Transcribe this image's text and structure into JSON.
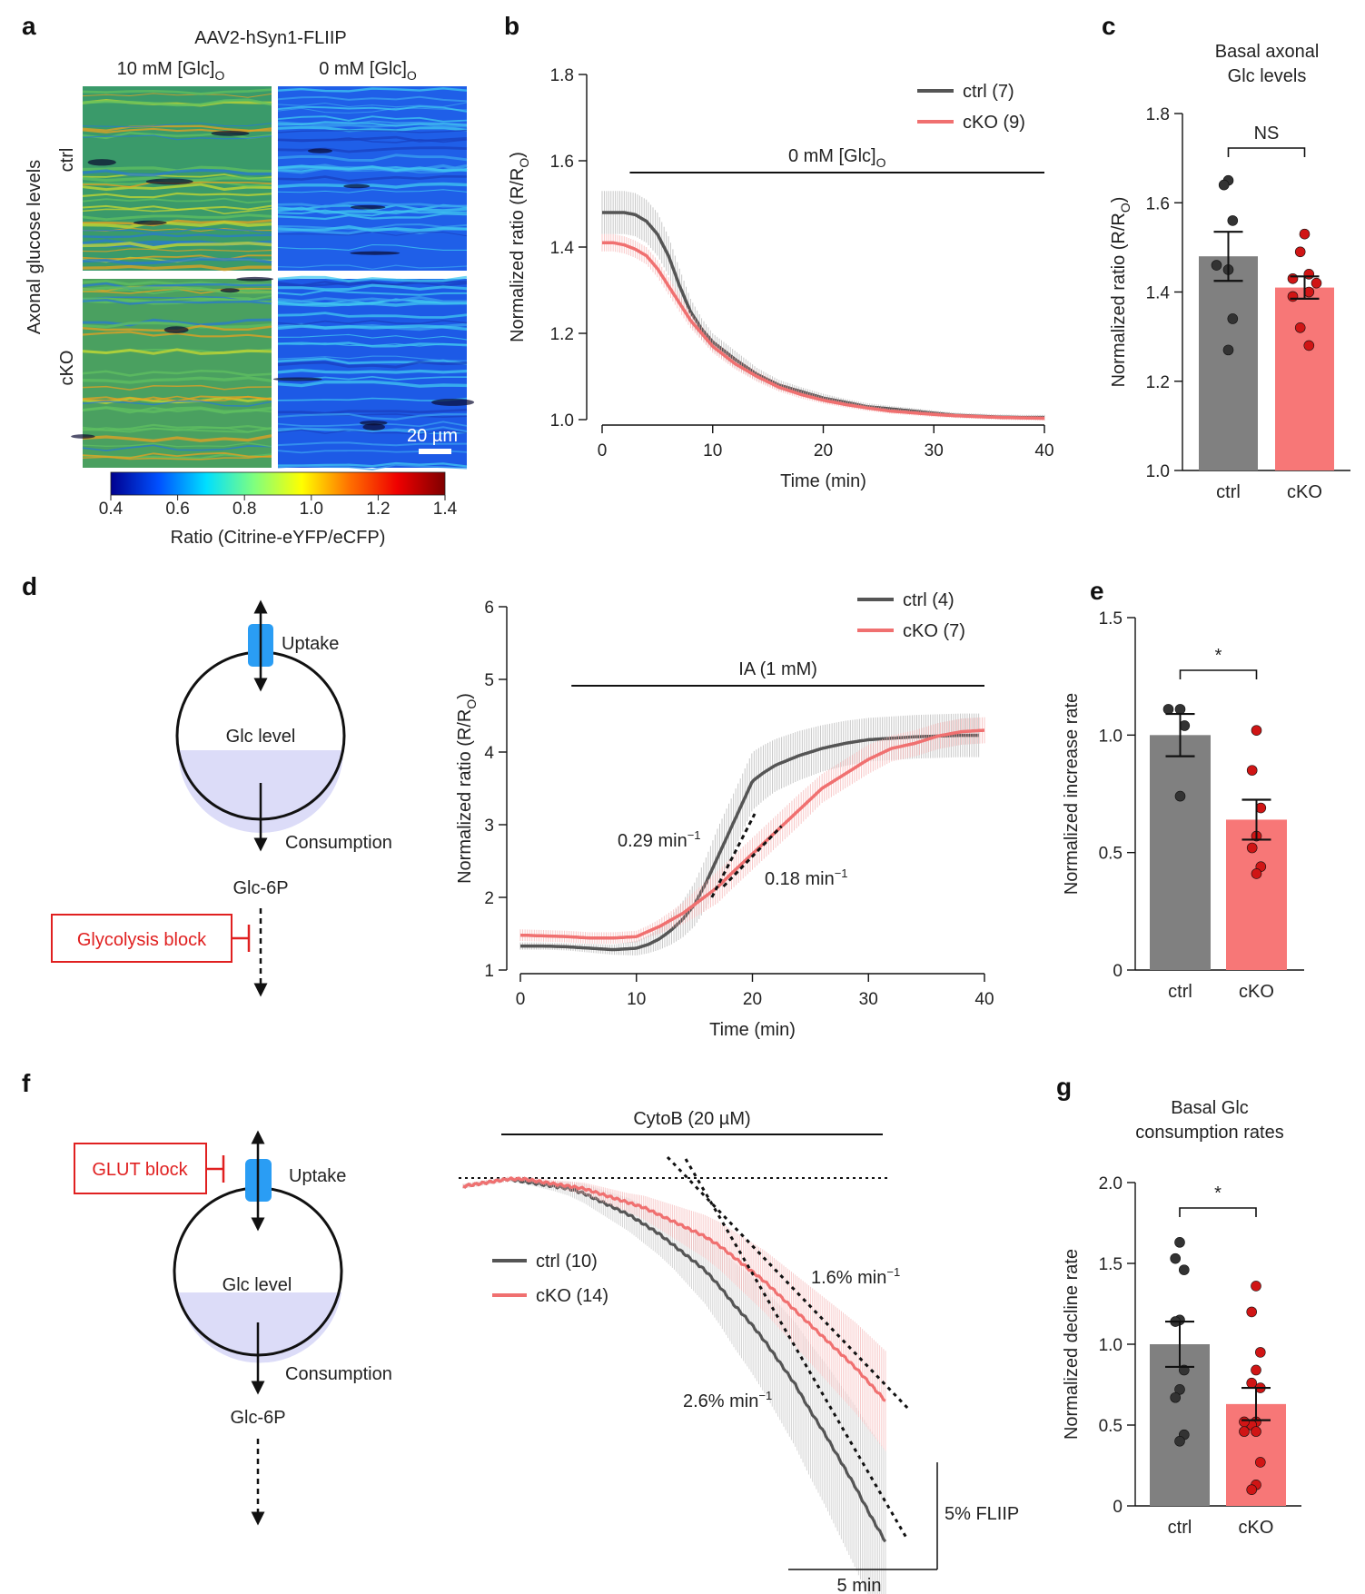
{
  "figure": {
    "panel_letters": [
      "a",
      "b",
      "c",
      "d",
      "e",
      "f",
      "g"
    ]
  },
  "panel_a": {
    "construct": "AAV2-hSyn1-FLIIP",
    "col_labels": [
      "10 mM [Glc]",
      "0 mM [Glc]"
    ],
    "col_label_subscript": "O",
    "row_axis_label": "Axonal glucose levels",
    "row_labels": [
      "ctrl",
      "cKO"
    ],
    "scale_bar": "20 µm",
    "colorbar": {
      "ticks": [
        "0.4",
        "0.6",
        "0.8",
        "1.0",
        "1.2",
        "1.4"
      ],
      "label": "Ratio (Citrine-eYFP/eCFP)",
      "colors": [
        "#00008f",
        "#0050ff",
        "#00dfff",
        "#7fff7f",
        "#ffff00",
        "#ff7000",
        "#ef0000",
        "#7f0000"
      ]
    }
  },
  "diagram_d": {
    "uptake": "Uptake",
    "level": "Glc level",
    "consumption": "Consumption",
    "product": "Glc-6P",
    "block": "Glycolysis block"
  },
  "diagram_f": {
    "uptake": "Uptake",
    "level": "Glc level",
    "consumption": "Consumption",
    "product": "Glc-6P",
    "block": "GLUT block"
  },
  "colors": {
    "ctrl_line": "#555555",
    "cko_line": "#f07070",
    "ctrl_bar": "#808080",
    "cko_bar": "#f77777",
    "ctrl_dot": "#333333",
    "cko_dot": "#d01515",
    "block_red": "#e02020",
    "transporter": "#2a9df4",
    "fill_lavender": "#dcdcf8"
  },
  "chart_data": [
    {
      "panel": "b",
      "type": "line",
      "title": "",
      "xlabel": "Time (min)",
      "ylabel": "Normalized ratio (R/R",
      "ylabel_sub": "O",
      "xlim": [
        0,
        40
      ],
      "ylim": [
        1.0,
        1.8
      ],
      "xticks": [
        0,
        10,
        20,
        30,
        40
      ],
      "yticks": [
        "1.0",
        "1.2",
        "1.4",
        "1.6",
        "1.8"
      ],
      "annotation": {
        "text": "0 mM [Glc]",
        "sub": "O",
        "x_range": [
          2.5,
          40
        ]
      },
      "legend": "top-right",
      "series": [
        {
          "name": "ctrl (7)",
          "x": [
            0,
            1,
            2,
            3,
            4,
            5,
            6,
            7,
            8,
            9,
            10,
            12,
            14,
            16,
            18,
            20,
            22,
            24,
            26,
            28,
            30,
            32,
            34,
            36,
            38,
            40
          ],
          "y": [
            1.48,
            1.48,
            1.48,
            1.475,
            1.46,
            1.43,
            1.38,
            1.31,
            1.25,
            1.21,
            1.18,
            1.14,
            1.105,
            1.08,
            1.065,
            1.05,
            1.04,
            1.03,
            1.025,
            1.02,
            1.015,
            1.01,
            1.008,
            1.006,
            1.005,
            1.005
          ],
          "sem": [
            0.05,
            0.05,
            0.05,
            0.05,
            0.05,
            0.05,
            0.045,
            0.04,
            0.03,
            0.025,
            0.02,
            0.02,
            0.015,
            0.012,
            0.01,
            0.01,
            0.008,
            0.008,
            0.007,
            0.007,
            0.006,
            0.006,
            0.006,
            0.006,
            0.006,
            0.006
          ]
        },
        {
          "name": "cKO (9)",
          "x": [
            0,
            1,
            2,
            3,
            4,
            5,
            6,
            7,
            8,
            9,
            10,
            12,
            14,
            16,
            18,
            20,
            22,
            24,
            26,
            28,
            30,
            32,
            34,
            36,
            38,
            40
          ],
          "y": [
            1.41,
            1.41,
            1.405,
            1.395,
            1.38,
            1.35,
            1.31,
            1.27,
            1.23,
            1.2,
            1.17,
            1.13,
            1.1,
            1.075,
            1.058,
            1.045,
            1.035,
            1.027,
            1.02,
            1.016,
            1.012,
            1.009,
            1.007,
            1.005,
            1.004,
            1.003
          ],
          "sem": [
            0.02,
            0.02,
            0.02,
            0.02,
            0.02,
            0.02,
            0.02,
            0.02,
            0.018,
            0.016,
            0.015,
            0.013,
            0.012,
            0.01,
            0.009,
            0.008,
            0.007,
            0.007,
            0.006,
            0.006,
            0.006,
            0.005,
            0.005,
            0.005,
            0.005,
            0.005
          ]
        }
      ]
    },
    {
      "panel": "c",
      "type": "bar",
      "title": "Basal axonal Glc levels",
      "ylabel": "Normalized ratio (R/R",
      "ylabel_sub": "O",
      "ylim": [
        1.0,
        1.8
      ],
      "yticks": [
        "1.0",
        "1.2",
        "1.4",
        "1.6",
        "1.8"
      ],
      "categories": [
        "ctrl",
        "cKO"
      ],
      "values": [
        1.48,
        1.41
      ],
      "sem": [
        0.055,
        0.025
      ],
      "points": [
        [
          1.65,
          1.64,
          1.56,
          1.45,
          1.46,
          1.34,
          1.27
        ],
        [
          1.53,
          1.49,
          1.44,
          1.43,
          1.42,
          1.4,
          1.39,
          1.32,
          1.28
        ]
      ],
      "significance": "NS"
    },
    {
      "panel": "d",
      "type": "line",
      "xlabel": "Time (min)",
      "ylabel": "Normalized ratio (R/R",
      "ylabel_sub": "O",
      "xlim": [
        0,
        40
      ],
      "ylim": [
        1,
        6
      ],
      "xticks": [
        0,
        10,
        20,
        30,
        40
      ],
      "yticks": [
        "1",
        "2",
        "3",
        "4",
        "5",
        "6"
      ],
      "annotation": {
        "text": "IA (1 mM)",
        "x_range": [
          4.4,
          40
        ]
      },
      "legend": "top-right",
      "slopes": [
        {
          "label": "0.29 min",
          "sup": "−1"
        },
        {
          "label": "0.18 min",
          "sup": "−1"
        }
      ],
      "series": [
        {
          "name": "ctrl (4)",
          "x": [
            0,
            2,
            4,
            6,
            8,
            10,
            11,
            12,
            13,
            14,
            15,
            16,
            17,
            18,
            19,
            20,
            21,
            22,
            24,
            26,
            28,
            30,
            32,
            34,
            36,
            38,
            39.5
          ],
          "y": [
            1.33,
            1.33,
            1.32,
            1.3,
            1.28,
            1.3,
            1.35,
            1.43,
            1.55,
            1.7,
            1.9,
            2.2,
            2.55,
            2.9,
            3.25,
            3.6,
            3.72,
            3.82,
            3.95,
            4.05,
            4.12,
            4.17,
            4.19,
            4.21,
            4.22,
            4.23,
            4.23
          ],
          "sem": [
            0.05,
            0.05,
            0.05,
            0.06,
            0.07,
            0.1,
            0.12,
            0.15,
            0.2,
            0.25,
            0.3,
            0.35,
            0.4,
            0.4,
            0.4,
            0.4,
            0.38,
            0.36,
            0.34,
            0.32,
            0.31,
            0.3,
            0.3,
            0.3,
            0.3,
            0.3,
            0.3
          ]
        },
        {
          "name": "cKO (7)",
          "x": [
            0,
            2,
            4,
            6,
            8,
            10,
            11,
            12,
            13,
            14,
            15,
            16,
            17,
            18,
            19,
            20,
            21,
            22,
            24,
            26,
            28,
            30,
            32,
            34,
            36,
            38,
            40
          ],
          "y": [
            1.48,
            1.47,
            1.46,
            1.44,
            1.44,
            1.46,
            1.53,
            1.6,
            1.69,
            1.78,
            1.9,
            2.02,
            2.14,
            2.3,
            2.45,
            2.6,
            2.75,
            2.9,
            3.2,
            3.5,
            3.7,
            3.9,
            4.05,
            4.12,
            4.22,
            4.28,
            4.3
          ],
          "sem": [
            0.08,
            0.08,
            0.08,
            0.08,
            0.08,
            0.08,
            0.08,
            0.1,
            0.12,
            0.15,
            0.18,
            0.2,
            0.22,
            0.22,
            0.22,
            0.22,
            0.22,
            0.22,
            0.22,
            0.2,
            0.2,
            0.2,
            0.18,
            0.18,
            0.18,
            0.18,
            0.18
          ]
        }
      ]
    },
    {
      "panel": "e",
      "type": "bar",
      "ylabel": "Normalized increase rate",
      "ylim": [
        0,
        1.5
      ],
      "yticks": [
        "0",
        "0.5",
        "1.0",
        "1.5"
      ],
      "categories": [
        "ctrl",
        "cKO"
      ],
      "values": [
        1.0,
        0.64
      ],
      "sem": [
        0.09,
        0.085
      ],
      "points": [
        [
          1.11,
          1.11,
          1.04,
          0.74
        ],
        [
          1.02,
          0.85,
          0.69,
          0.57,
          0.52,
          0.44,
          0.41
        ]
      ],
      "significance": "*"
    },
    {
      "panel": "f",
      "type": "line",
      "xlabel": "",
      "ylabel": "",
      "annotation": {
        "text": "CytoB (20 µM)"
      },
      "scale_bars": {
        "x": "5 min",
        "y": "5% FLIIP"
      },
      "legend": "center-left",
      "slopes": [
        {
          "label": "1.6% min",
          "sup": "−1"
        },
        {
          "label": "2.6% min",
          "sup": "−1"
        }
      ],
      "units": {
        "x": "min",
        "y": "% FLIIP change"
      },
      "series": [
        {
          "name": "ctrl (10)",
          "x": [
            0,
            1,
            2,
            3,
            4,
            5,
            6,
            7,
            8,
            9,
            10,
            11,
            12,
            13,
            14,
            15,
            16,
            17,
            18,
            19,
            20,
            21,
            22,
            23,
            24,
            25,
            26,
            27,
            28
          ],
          "y": [
            0,
            0.1,
            0.2,
            0.3,
            0.2,
            0.1,
            0,
            -0.1,
            -0.3,
            -0.6,
            -0.9,
            -1.2,
            -1.6,
            -2.0,
            -2.5,
            -3.0,
            -3.5,
            -4.2,
            -5.0,
            -5.7,
            -6.5,
            -7.4,
            -8.3,
            -9.4,
            -10.4,
            -11.5,
            -12.6,
            -13.8,
            -14.9
          ],
          "sem": [
            0.1,
            0.1,
            0.1,
            0.1,
            0.1,
            0.15,
            0.2,
            0.3,
            0.4,
            0.5,
            0.6,
            0.7,
            0.8,
            0.9,
            1.0,
            1.2,
            1.4,
            1.6,
            1.8,
            2.0,
            2.2,
            2.4,
            2.6,
            2.8,
            3.0,
            3.2,
            3.4,
            3.6,
            3.8
          ]
        },
        {
          "name": "cKO (14)",
          "x": [
            0,
            1,
            2,
            3,
            4,
            5,
            6,
            7,
            8,
            9,
            10,
            11,
            12,
            13,
            14,
            15,
            16,
            17,
            18,
            19,
            20,
            21,
            22,
            23,
            24,
            25,
            26,
            27,
            28
          ],
          "y": [
            0,
            0.1,
            0.2,
            0.3,
            0.3,
            0.2,
            0.1,
            0,
            -0.1,
            -0.3,
            -0.5,
            -0.7,
            -0.9,
            -1.2,
            -1.5,
            -1.8,
            -2.1,
            -2.5,
            -3.0,
            -3.5,
            -4.0,
            -4.6,
            -5.2,
            -5.8,
            -6.4,
            -7.0,
            -7.6,
            -8.3,
            -9.0
          ],
          "sem": [
            0.1,
            0.1,
            0.1,
            0.1,
            0.1,
            0.12,
            0.15,
            0.2,
            0.25,
            0.3,
            0.35,
            0.4,
            0.5,
            0.6,
            0.7,
            0.8,
            0.9,
            1.0,
            1.1,
            1.2,
            1.3,
            1.4,
            1.5,
            1.6,
            1.7,
            1.8,
            1.9,
            2.0,
            2.1
          ]
        }
      ]
    },
    {
      "panel": "g",
      "type": "bar",
      "title": "Basal Glc consumption rates",
      "ylabel": "Normalized decline rate",
      "ylim": [
        0,
        2.0
      ],
      "yticks": [
        "0",
        "0.5",
        "1.0",
        "1.5",
        "2.0"
      ],
      "categories": [
        "ctrl",
        "cKO"
      ],
      "values": [
        1.0,
        0.63
      ],
      "sem": [
        0.14,
        0.1
      ],
      "points": [
        [
          1.63,
          1.53,
          1.46,
          1.15,
          1.14,
          0.84,
          0.72,
          0.67,
          0.44,
          0.4
        ],
        [
          1.36,
          1.2,
          0.95,
          0.84,
          0.76,
          0.73,
          0.52,
          0.5,
          0.52,
          0.46,
          0.46,
          0.27,
          0.13,
          0.1
        ]
      ],
      "significance": "*"
    }
  ]
}
